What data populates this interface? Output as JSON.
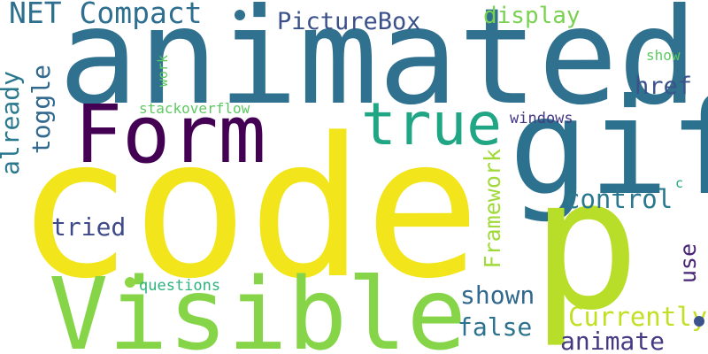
{
  "words": {
    "code": {
      "text": "code",
      "color": "#f2e51b"
    },
    "animated": {
      "text": "animated",
      "color": "#2f718e"
    },
    "visible": {
      "text": "Visible",
      "color": "#86d549"
    },
    "form": {
      "text": "Form",
      "color": "#440154"
    },
    "gif": {
      "text": "gif",
      "color": "#2c728e"
    },
    "p": {
      "text": "p",
      "color": "#b8de29"
    },
    "true": {
      "text": "true",
      "color": "#21a685"
    },
    "net_compact": {
      "text": "NET Compact",
      "color": "#2e6e8e"
    },
    "picturebox": {
      "text": "PictureBox",
      "color": "#3b518b"
    },
    "display": {
      "text": "display",
      "color": "#7ad151"
    },
    "show": {
      "text": "show",
      "color": "#5ec962"
    },
    "href": {
      "text": "href",
      "color": "#3b528b"
    },
    "already": {
      "text": "already",
      "color": "#2a788e"
    },
    "toggle": {
      "text": "toggle",
      "color": "#31688e"
    },
    "work": {
      "text": "work",
      "color": "#5ec962"
    },
    "stackoverflow": {
      "text": "stackoverflow",
      "color": "#5ec962"
    },
    "windows": {
      "text": "windows",
      "color": "#443983"
    },
    "framework": {
      "text": "Framework",
      "color": "#a0da39"
    },
    "c": {
      "text": "c",
      "color": "#22a884"
    },
    "control": {
      "text": "control",
      "color": "#29798e"
    },
    "tried": {
      "text": "tried",
      "color": "#3e4989"
    },
    "use": {
      "text": "use",
      "color": "#482475"
    },
    "questions": {
      "text": "questions",
      "color": "#2db27d"
    },
    "shown": {
      "text": "shown",
      "color": "#31688e"
    },
    "false": {
      "text": "false",
      "color": "#2c728e"
    },
    "currently": {
      "text": "Currently",
      "color": "#c2df23"
    },
    "animate": {
      "text": "animate",
      "color": "#443a83"
    }
  },
  "dots": {
    "dot_1": {
      "color": "#2f718e"
    },
    "dot_2": {
      "color": "#8ed645"
    },
    "dot_3": {
      "color": "#3b528b"
    }
  }
}
